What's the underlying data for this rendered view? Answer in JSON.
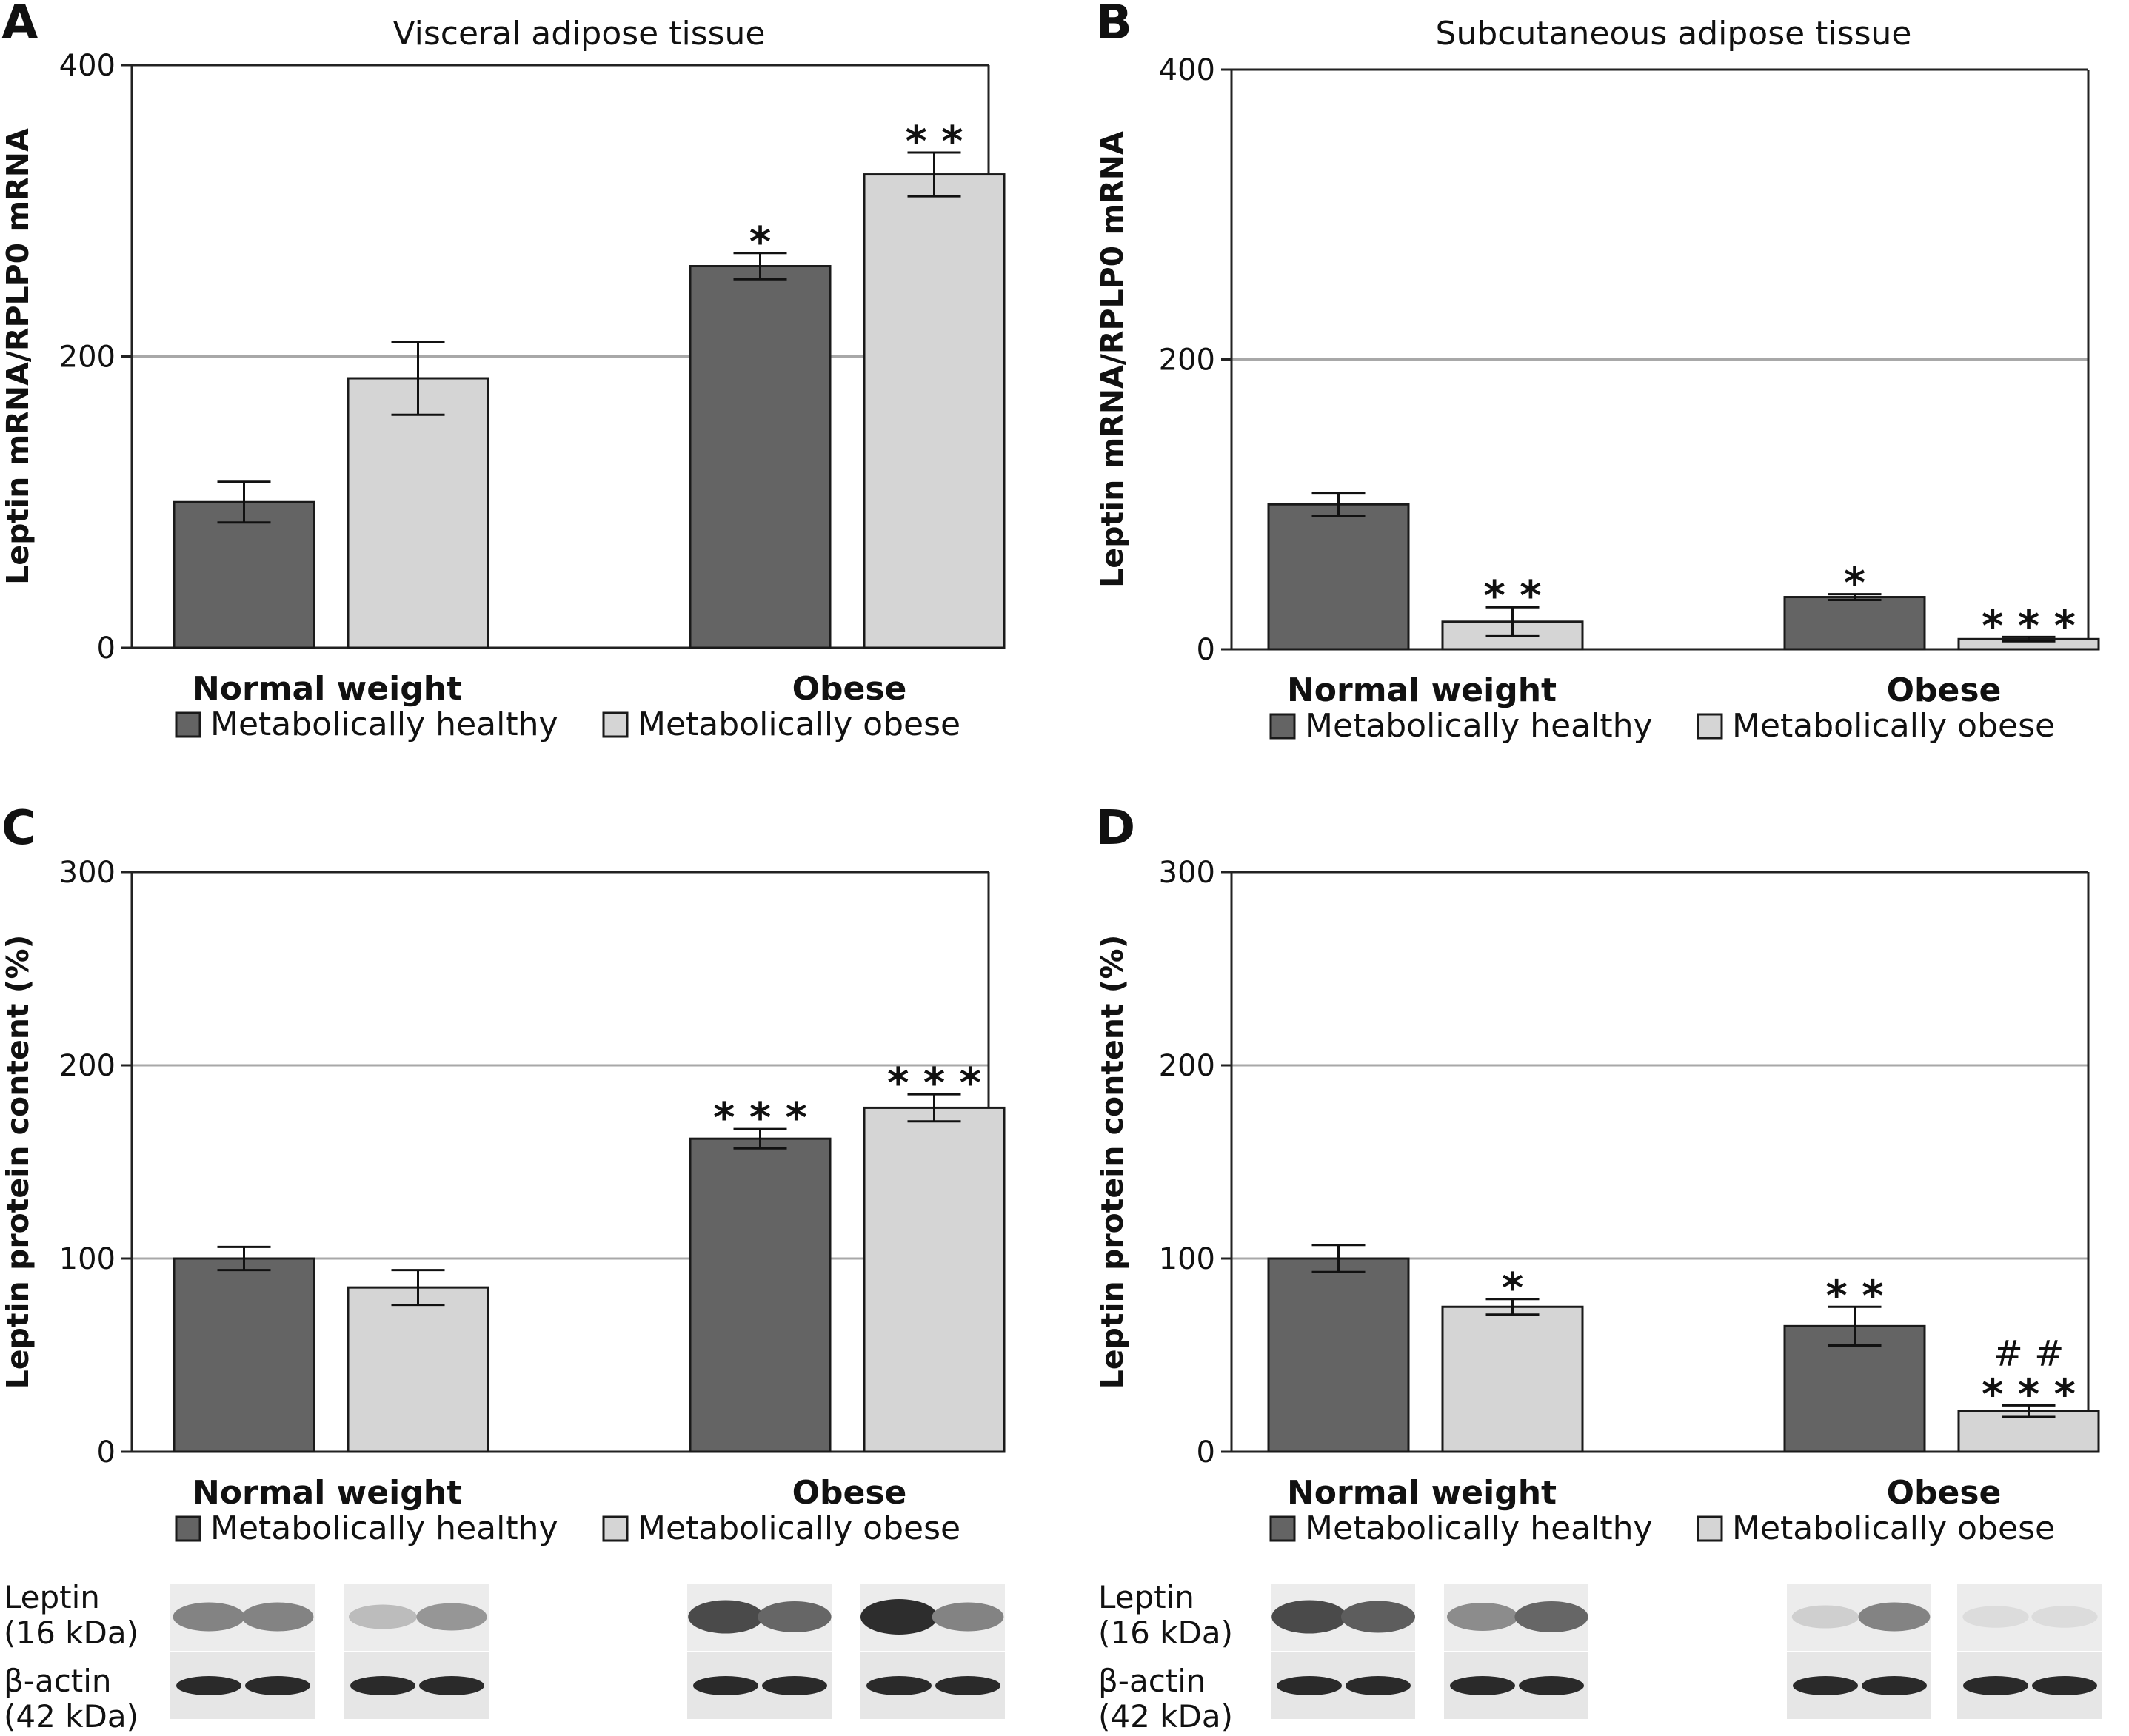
{
  "colors": {
    "metabolically_healthy": "#646464",
    "metabolically_obese": "#d5d5d5",
    "gridline": "#a8a8a8",
    "axis": "#222222"
  },
  "chart_data": [
    {
      "panel": "A",
      "type": "bar",
      "title": "Visceral adipose tissue",
      "ylabel": "Leptin mRNA/RPLP0 mRNA",
      "xlabel": "",
      "ylim": [
        0,
        400
      ],
      "yticks": [
        0,
        200,
        400
      ],
      "grid": true,
      "legend_position": "bottom",
      "categories": [
        "Normal weight",
        "Obese"
      ],
      "series": [
        {
          "name": "Metabolically healthy",
          "values": [
            100,
            262
          ],
          "errors": [
            14,
            9
          ],
          "annotations": [
            "",
            "*"
          ]
        },
        {
          "name": "Metabolically obese",
          "values": [
            185,
            325
          ],
          "errors": [
            25,
            15
          ],
          "annotations": [
            "",
            "* *"
          ]
        }
      ]
    },
    {
      "panel": "B",
      "type": "bar",
      "title": "Subcutaneous adipose tissue",
      "ylabel": "Leptin mRNA/RPLP0 mRNA",
      "xlabel": "",
      "ylim": [
        0,
        400
      ],
      "yticks": [
        0,
        200,
        400
      ],
      "grid": true,
      "legend_position": "bottom",
      "categories": [
        "Normal weight",
        "Obese"
      ],
      "series": [
        {
          "name": "Metabolically healthy",
          "values": [
            100,
            36
          ],
          "errors": [
            8,
            2
          ],
          "annotations": [
            "",
            "*"
          ]
        },
        {
          "name": "Metabolically obese",
          "values": [
            19,
            7
          ],
          "errors": [
            10,
            1.5
          ],
          "annotations": [
            "* *",
            "* * *"
          ]
        }
      ]
    },
    {
      "panel": "C",
      "type": "bar",
      "title": "",
      "ylabel": "Leptin protein content (%)",
      "xlabel": "",
      "ylim": [
        0,
        300
      ],
      "yticks": [
        0,
        100,
        200,
        300
      ],
      "grid": true,
      "legend_position": "bottom",
      "categories": [
        "Normal weight",
        "Obese"
      ],
      "series": [
        {
          "name": "Metabolically healthy",
          "values": [
            100,
            162
          ],
          "errors": [
            6,
            5
          ],
          "annotations": [
            "",
            "* * *"
          ]
        },
        {
          "name": "Metabolically obese",
          "values": [
            85,
            178
          ],
          "errors": [
            9,
            7
          ],
          "annotations": [
            "",
            "* * *"
          ]
        }
      ]
    },
    {
      "panel": "D",
      "type": "bar",
      "title": "",
      "ylabel": "Leptin protein content (%)",
      "xlabel": "",
      "ylim": [
        0,
        300
      ],
      "yticks": [
        0,
        100,
        200,
        300
      ],
      "grid": true,
      "legend_position": "bottom",
      "categories": [
        "Normal weight",
        "Obese"
      ],
      "series": [
        {
          "name": "Metabolically healthy",
          "values": [
            100,
            65
          ],
          "errors": [
            7,
            10
          ],
          "annotations": [
            "",
            "* *"
          ]
        },
        {
          "name": "Metabolically obese",
          "values": [
            75,
            21
          ],
          "errors": [
            4,
            3
          ],
          "annotations": [
            "*",
            "* * *"
          ],
          "secondary_annotations": [
            "",
            "# #"
          ]
        }
      ]
    }
  ],
  "blots": {
    "leptin_label": "Leptin",
    "leptin_size": "(16 kDa)",
    "actin_label": "β-actin",
    "actin_size": "(42 kDa)"
  }
}
